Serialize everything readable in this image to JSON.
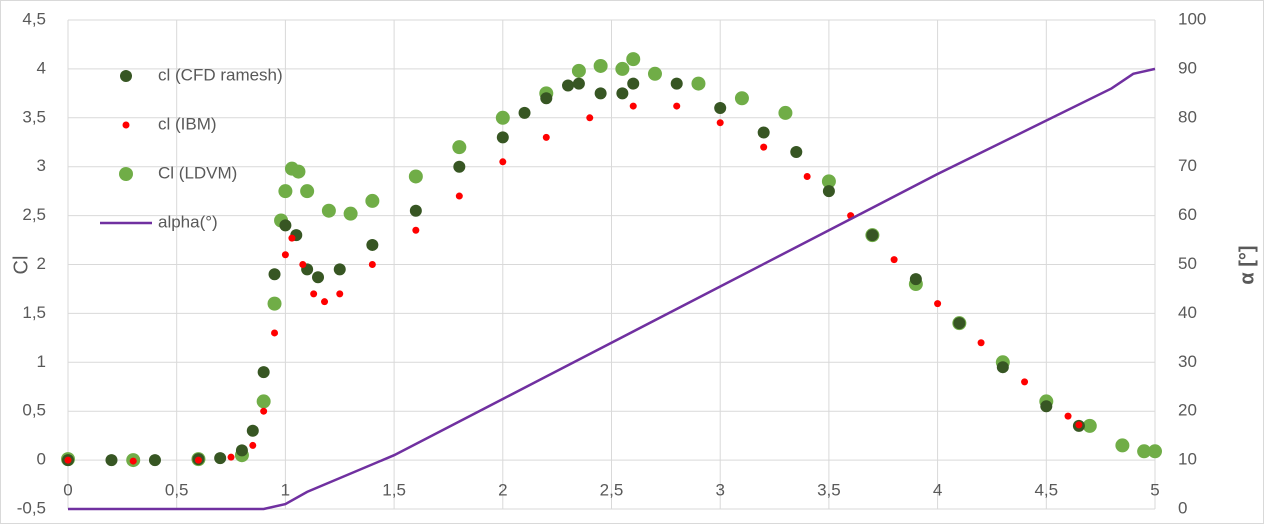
{
  "chart_data": {
    "type": "scatter",
    "y_label": "Cl",
    "y2_label": "α [°]",
    "xlim": [
      0,
      5
    ],
    "xticks": [
      0,
      {
        "value": 0.5,
        "label": "0,5"
      },
      1,
      {
        "value": 1.5,
        "label": "1,5"
      },
      2,
      {
        "value": 2.5,
        "label": "2,5"
      },
      3,
      {
        "value": 3.5,
        "label": "3,5"
      },
      4,
      {
        "value": 4.5,
        "label": "4,5"
      },
      5
    ],
    "ylim": [
      -0.5,
      4.5
    ],
    "yticks": [
      {
        "value": -0.5,
        "label": "-0,5"
      },
      0,
      {
        "value": 0.5,
        "label": "0,5"
      },
      1,
      {
        "value": 1.5,
        "label": "1,5"
      },
      2,
      {
        "value": 2.5,
        "label": "2,5"
      },
      3,
      {
        "value": 3.5,
        "label": "3,5"
      },
      4,
      {
        "value": 4.5,
        "label": "4,5"
      }
    ],
    "y2lim": [
      0,
      100
    ],
    "y2ticks": [
      0,
      10,
      20,
      30,
      40,
      50,
      60,
      70,
      80,
      90,
      100
    ],
    "grid": true,
    "legend": "top-left",
    "series": [
      {
        "name": "cl (CFD ramesh)",
        "color": "#375623",
        "marker": "circle",
        "x": [
          0,
          0.2,
          0.4,
          0.6,
          0.7,
          0.8,
          0.85,
          0.9,
          0.95,
          1.0,
          1.05,
          1.1,
          1.15,
          1.25,
          1.4,
          1.6,
          1.8,
          2.0,
          2.1,
          2.2,
          2.3,
          2.35,
          2.45,
          2.55,
          2.6,
          2.8,
          3.0,
          3.2,
          3.35,
          3.5,
          3.7,
          3.9,
          4.1,
          4.3,
          4.5,
          4.65
        ],
        "values": [
          0,
          0,
          0,
          0.01,
          0.02,
          0.1,
          0.3,
          0.9,
          1.9,
          2.4,
          2.3,
          1.95,
          1.87,
          1.95,
          2.2,
          2.55,
          3.0,
          3.3,
          3.55,
          3.7,
          3.83,
          3.85,
          3.75,
          3.75,
          3.85,
          3.85,
          3.6,
          3.35,
          3.15,
          2.75,
          2.3,
          1.85,
          1.4,
          0.95,
          0.55,
          0.35
        ]
      },
      {
        "name": "cl (IBM)",
        "color": "#ff0000",
        "marker": "circle",
        "x": [
          0,
          0.3,
          0.6,
          0.75,
          0.85,
          0.9,
          0.95,
          1.0,
          1.03,
          1.08,
          1.13,
          1.18,
          1.25,
          1.4,
          1.6,
          1.8,
          2.0,
          2.2,
          2.4,
          2.6,
          2.8,
          3.0,
          3.2,
          3.4,
          3.6,
          3.8,
          4.0,
          4.2,
          4.4,
          4.6,
          4.65
        ],
        "values": [
          0,
          -0.01,
          0,
          0.03,
          0.15,
          0.5,
          1.3,
          2.1,
          2.27,
          2.0,
          1.7,
          1.62,
          1.7,
          2.0,
          2.35,
          2.7,
          3.05,
          3.3,
          3.5,
          3.62,
          3.62,
          3.45,
          3.2,
          2.9,
          2.5,
          2.05,
          1.6,
          1.2,
          0.8,
          0.45,
          0.36
        ]
      },
      {
        "name": "Cl (LDVM)",
        "color": "#70ad47",
        "marker": "circle",
        "x": [
          0,
          0.3,
          0.6,
          0.8,
          0.9,
          0.95,
          0.98,
          1.0,
          1.03,
          1.06,
          1.1,
          1.2,
          1.3,
          1.4,
          1.6,
          1.8,
          2.0,
          2.2,
          2.35,
          2.45,
          2.55,
          2.6,
          2.7,
          2.9,
          3.1,
          3.3,
          3.5,
          3.7,
          3.9,
          4.1,
          4.3,
          4.5,
          4.7,
          4.85,
          4.95,
          5.0
        ],
        "values": [
          0.01,
          0,
          0.01,
          0.05,
          0.6,
          1.6,
          2.45,
          2.75,
          2.98,
          2.95,
          2.75,
          2.55,
          2.52,
          2.65,
          2.9,
          3.2,
          3.5,
          3.75,
          3.98,
          4.03,
          4.0,
          4.1,
          3.95,
          3.85,
          3.7,
          3.55,
          2.85,
          2.3,
          1.8,
          1.4,
          1.0,
          0.6,
          0.35,
          0.15,
          0.09,
          0.09
        ]
      },
      {
        "name": "alpha(°)",
        "color": "#7030a0",
        "marker": "line",
        "axis": "y2",
        "x": [
          0,
          0.9,
          1.0,
          1.1,
          1.5,
          2.0,
          3.0,
          4.0,
          4.8,
          4.9,
          5.0
        ],
        "values": [
          0,
          0,
          1,
          3.5,
          11,
          22.5,
          45.5,
          68.5,
          86,
          89,
          90
        ]
      }
    ]
  }
}
